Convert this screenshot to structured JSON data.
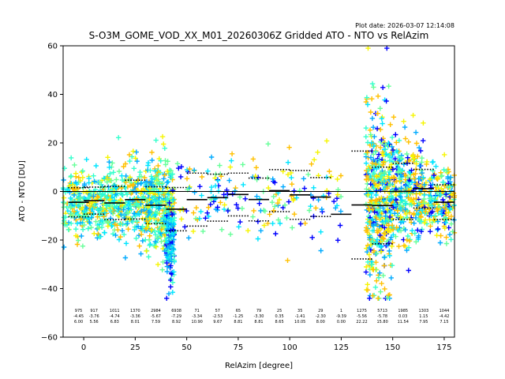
{
  "chart_data": {
    "type": "scatter",
    "title": "S-O3M_GOME_VOD_XX_M01_20260306Z Gridded ATO - NTO vs RelAzim",
    "subtitle": "Plot date: 2026-03-07 12:14:08",
    "xlabel": "RelAzim [degree]",
    "ylabel": "ATO - NTO [DU]",
    "xlim": [
      -10,
      180
    ],
    "ylim": [
      -60,
      60
    ],
    "x_ticks": [
      0,
      25,
      50,
      75,
      100,
      125,
      150,
      175
    ],
    "y_ticks": [
      -60,
      -40,
      -20,
      0,
      20,
      40,
      60
    ],
    "grid": false,
    "colors": {
      "blue": "#0000ff",
      "deep_sky": "#00aaff",
      "cyan": "#00e5ff",
      "aquamarine": "#33ffcc",
      "light_green": "#66ff99",
      "yellow": "#f5f500",
      "gold": "#ffc000",
      "black": "#000000"
    },
    "zero_line": 0,
    "bin_stats": [
      {
        "x": -2.5,
        "count": "975",
        "mean": "-4.45",
        "std": "6.00"
      },
      {
        "x": 5,
        "count": "917",
        "mean": "-3.76",
        "std": "5.56"
      },
      {
        "x": 15,
        "count": "1011",
        "mean": "-4.74",
        "std": "6.83"
      },
      {
        "x": 25,
        "count": "1370",
        "mean": "-3.36",
        "std": "8.01"
      },
      {
        "x": 35,
        "count": "2984",
        "mean": "-5.67",
        "std": "7.59"
      },
      {
        "x": 45,
        "count": "6938",
        "mean": "-7.29",
        "std": "8.92"
      },
      {
        "x": 55,
        "count": "71",
        "mean": "-3.34",
        "std": "10.90"
      },
      {
        "x": 65,
        "count": "57",
        "mean": "-2.53",
        "std": "9.67"
      },
      {
        "x": 75,
        "count": "65",
        "mean": "-1.25",
        "std": "8.81"
      },
      {
        "x": 85,
        "count": "79",
        "mean": "-3.30",
        "std": "8.81"
      },
      {
        "x": 95,
        "count": "25",
        "mean": "0.35",
        "std": "8.65"
      },
      {
        "x": 105,
        "count": "35",
        "mean": "-1.41",
        "std": "10.05"
      },
      {
        "x": 115,
        "count": "29",
        "mean": "-2.30",
        "std": "8.00"
      },
      {
        "x": 125,
        "count": "1",
        "mean": "-9.39",
        "std": "0.00"
      },
      {
        "x": 135,
        "count": "1275",
        "mean": "-5.56",
        "std": "22.22"
      },
      {
        "x": 145,
        "count": "5713",
        "mean": "-5.78",
        "std": "15.80"
      },
      {
        "x": 155,
        "count": "1985",
        "mean": "0.03",
        "std": "11.54"
      },
      {
        "x": 165,
        "count": "1303",
        "mean": "1.15",
        "std": "7.95"
      },
      {
        "x": 175,
        "count": "1044",
        "mean": "-4.42",
        "std": "7.15"
      }
    ]
  }
}
